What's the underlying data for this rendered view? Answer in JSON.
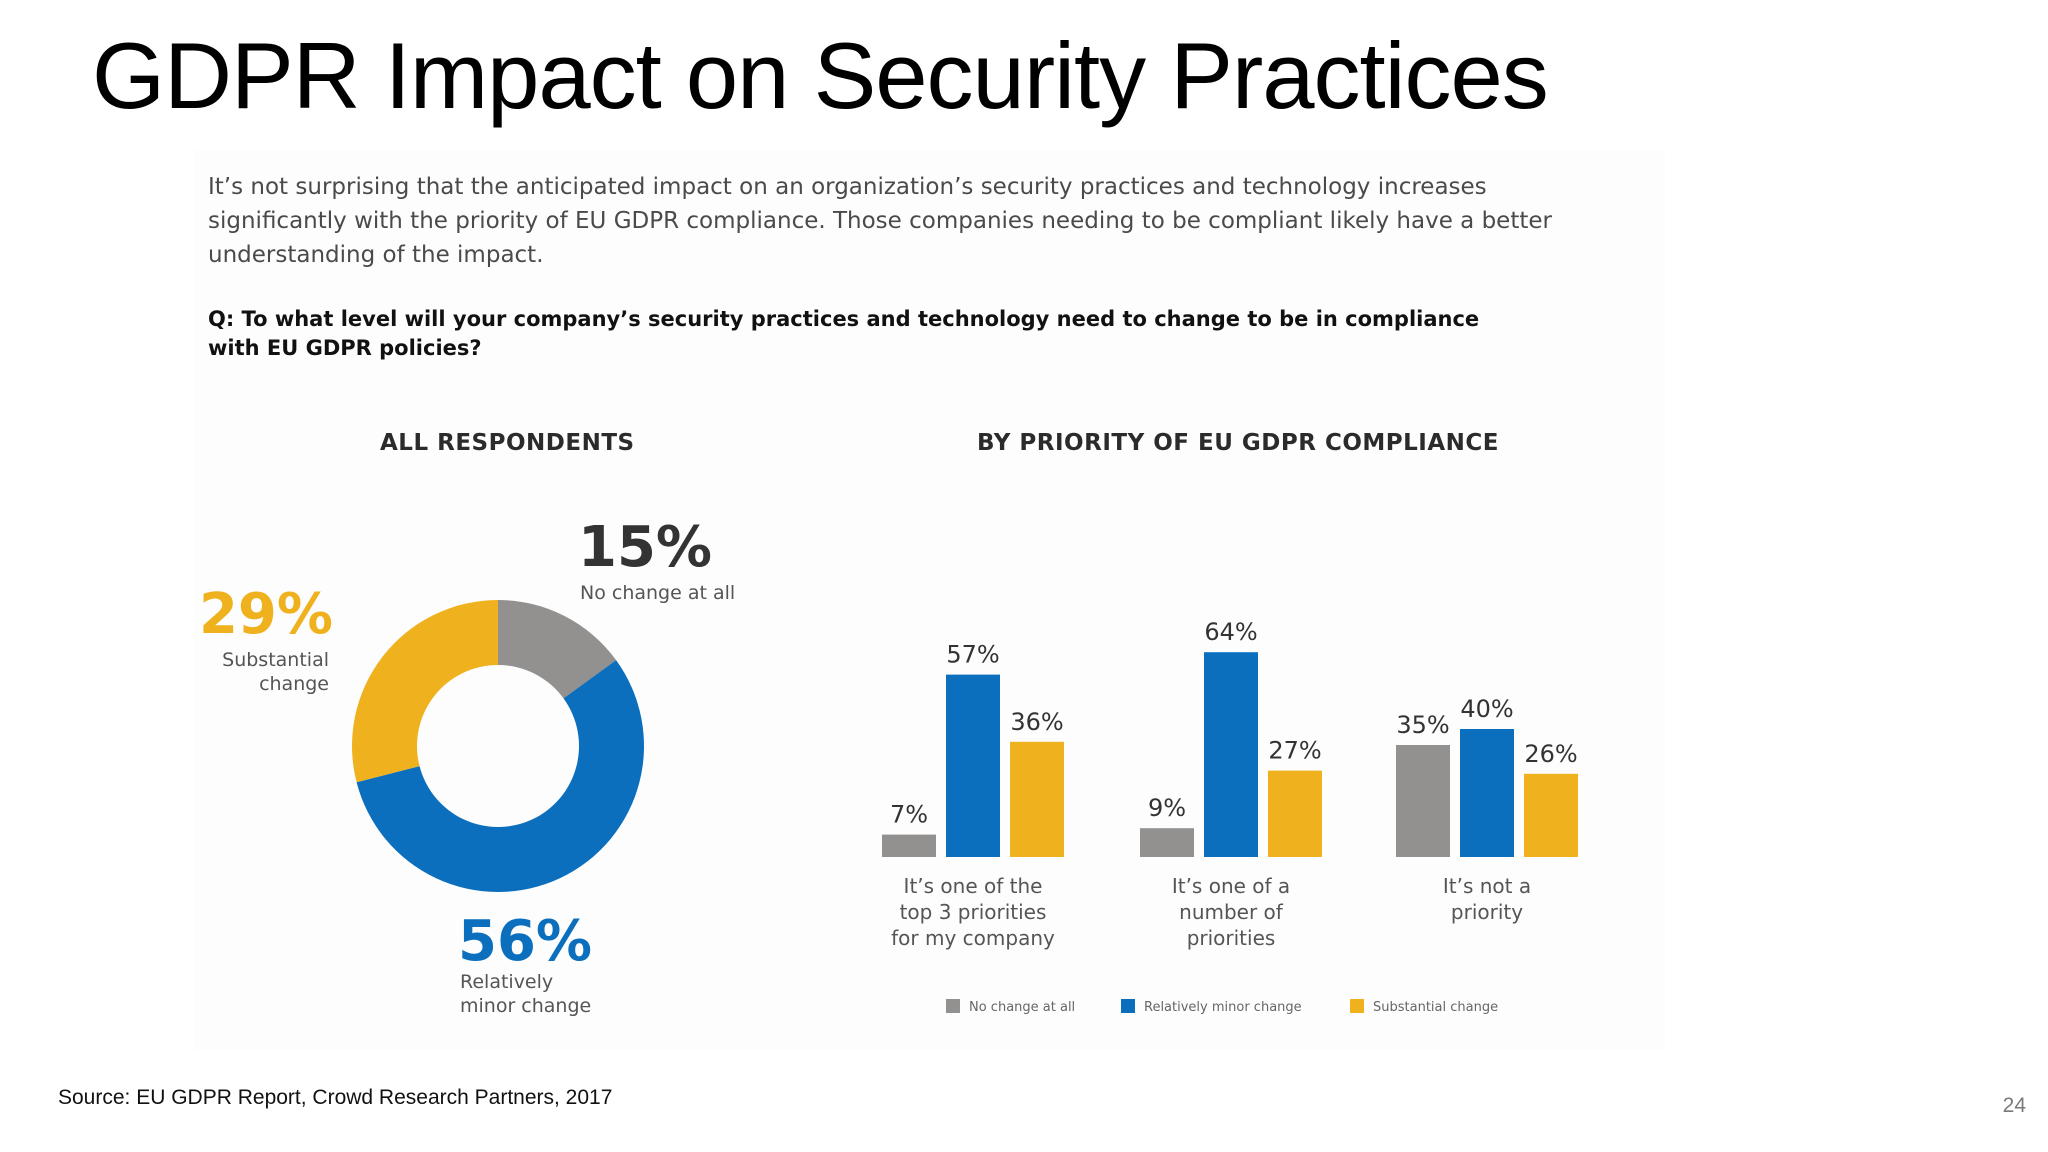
{
  "slide": {
    "title": "GDPR Impact on Security Practices",
    "intro": "It’s not surprising that the anticipated impact on an organization’s security practices and technology increases significantly with the priority of EU GDPR compliance. Those companies needing to be compliant likely have a better understanding of the impact.",
    "question": "Q: To what level will your company’s security practices and technology need to change to be in compliance with EU GDPR policies?",
    "source": "Source: EU GDPR Report, Crowd Research Partners, 2017",
    "page_number": "24"
  },
  "colors": {
    "no_change": "#939090",
    "minor_change": "#0b6fbd",
    "substantial_change": "#efb21e",
    "label_text": "#444444"
  },
  "chart_data": [
    {
      "type": "pie",
      "title": "ALL RESPONDENTS",
      "donut": true,
      "slices": [
        {
          "label": "No change at all",
          "value": 15,
          "value_label": "15%",
          "color_key": "no_change"
        },
        {
          "label": "Relatively minor change",
          "value": 56,
          "value_label": "56%",
          "color_key": "minor_change"
        },
        {
          "label": "Substantial change",
          "value": 29,
          "value_label": "29%",
          "color_key": "substantial_change"
        }
      ]
    },
    {
      "type": "bar",
      "title": "BY PRIORITY OF EU GDPR COMPLIANCE",
      "categories": [
        "It’s one of the top 3 priorities for my company",
        "It’s one of a number of priorities",
        "It’s not a priority"
      ],
      "series": [
        {
          "name": "No change at all",
          "color_key": "no_change",
          "values": [
            7,
            9,
            35
          ]
        },
        {
          "name": "Relatively minor change",
          "color_key": "minor_change",
          "values": [
            57,
            64,
            40
          ]
        },
        {
          "name": "Substantial change",
          "color_key": "substantial_change",
          "values": [
            36,
            27,
            26
          ]
        }
      ],
      "value_suffix": "%",
      "grid": false,
      "legend_position": "bottom"
    }
  ]
}
